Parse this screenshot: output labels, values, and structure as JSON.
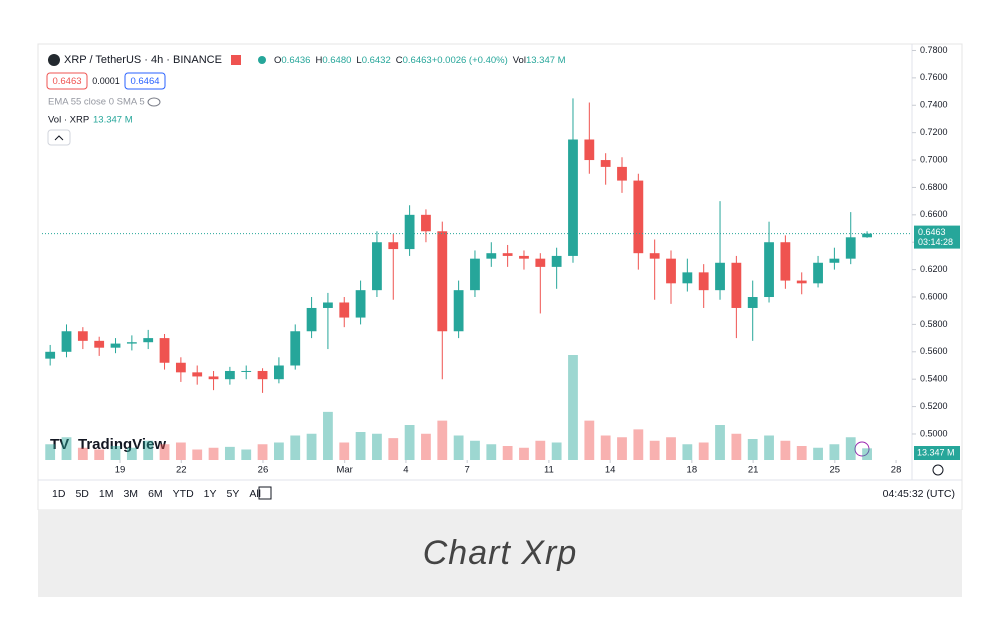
{
  "chart_data": {
    "type": "candlestick",
    "symbol": "XRP / TetherUS · 4h · BINANCE",
    "ohlc_legend": [
      {
        "key": "O",
        "value": "0.6436"
      },
      {
        "key": "H",
        "value": "0.6480"
      },
      {
        "key": "L",
        "value": "0.6432"
      },
      {
        "key": "C",
        "value": "0.6463"
      },
      {
        "key": "",
        "value": "+0.0026 (+0.40%)"
      },
      {
        "key": "Vol",
        "value": "13.347 M"
      }
    ],
    "sell_price": "0.6463",
    "spread": "0.0001",
    "buy_price": "0.6464",
    "indicator_ema": "EMA 55 close 0 SMA 5",
    "indicator_vol": "Vol · XRP",
    "indicator_vol_value": "13.347 M",
    "last_price_label": "0.6463",
    "countdown": "03:14:28",
    "volume_label": "13.347 M",
    "brand": "TradingView",
    "timeframes": [
      "1D",
      "5D",
      "1M",
      "3M",
      "6M",
      "YTD",
      "1Y",
      "5Y",
      "All"
    ],
    "clock": "04:45:32 (UTC)",
    "caption": "Chart Xrp",
    "up_color": "#26a69a",
    "down_color": "#ef5350",
    "last_price": 0.6463,
    "xlim": [
      0,
      53.25
    ],
    "xticks": [
      {
        "value": 4.775,
        "label": "19"
      },
      {
        "value": 8.525,
        "label": "22"
      },
      {
        "value": 13.525,
        "label": "26"
      },
      {
        "value": 18.525,
        "label": "Mar"
      },
      {
        "value": 22.275,
        "label": "4"
      },
      {
        "value": 26.025,
        "label": "7"
      },
      {
        "value": 31.025,
        "label": "11"
      },
      {
        "value": 34.775,
        "label": "14"
      },
      {
        "value": 39.775,
        "label": "18"
      },
      {
        "value": 43.525,
        "label": "21"
      },
      {
        "value": 48.525,
        "label": "25"
      },
      {
        "value": 52.275,
        "label": "28"
      }
    ],
    "ylim": [
      0.481,
      0.784
    ],
    "yticks": [
      {
        "value": 0.78,
        "label": "0.7800"
      },
      {
        "value": 0.76,
        "label": "0.7600"
      },
      {
        "value": 0.74,
        "label": "0.7400"
      },
      {
        "value": 0.72,
        "label": "0.7200"
      },
      {
        "value": 0.7,
        "label": "0.7000"
      },
      {
        "value": 0.68,
        "label": "0.6800"
      },
      {
        "value": 0.66,
        "label": "0.6600"
      },
      {
        "value": 0.64,
        "label": "0.6400"
      },
      {
        "value": 0.62,
        "label": "0.6200"
      },
      {
        "value": 0.6,
        "label": "0.6000"
      },
      {
        "value": 0.58,
        "label": "0.5800"
      },
      {
        "value": 0.56,
        "label": "0.5600"
      },
      {
        "value": 0.54,
        "label": "0.5400"
      },
      {
        "value": 0.52,
        "label": "0.5200"
      },
      {
        "value": 0.5,
        "label": "0.5000"
      }
    ],
    "open": [
      0.555,
      0.56,
      0.575,
      0.568,
      0.563,
      0.566,
      0.567,
      0.57,
      0.552,
      0.545,
      0.542,
      0.54,
      0.546,
      0.546,
      0.54,
      0.55,
      0.575,
      0.592,
      0.596,
      0.585,
      0.605,
      0.64,
      0.635,
      0.66,
      0.648,
      0.575,
      0.605,
      0.628,
      0.632,
      0.63,
      0.628,
      0.622,
      0.63,
      0.715,
      0.7,
      0.695,
      0.685,
      0.632,
      0.628,
      0.61,
      0.618,
      0.605,
      0.625,
      0.592,
      0.6,
      0.64,
      0.612,
      0.61,
      0.625,
      0.628,
      0.6436
    ],
    "high": [
      0.565,
      0.58,
      0.578,
      0.571,
      0.57,
      0.572,
      0.576,
      0.573,
      0.556,
      0.55,
      0.546,
      0.549,
      0.55,
      0.548,
      0.556,
      0.58,
      0.6,
      0.603,
      0.6,
      0.612,
      0.648,
      0.646,
      0.667,
      0.664,
      0.655,
      0.612,
      0.634,
      0.64,
      0.638,
      0.634,
      0.632,
      0.636,
      0.745,
      0.742,
      0.705,
      0.702,
      0.69,
      0.642,
      0.634,
      0.628,
      0.624,
      0.67,
      0.63,
      0.612,
      0.655,
      0.645,
      0.618,
      0.63,
      0.636,
      0.662,
      0.648
    ],
    "low": [
      0.55,
      0.556,
      0.562,
      0.557,
      0.559,
      0.561,
      0.562,
      0.547,
      0.538,
      0.536,
      0.532,
      0.536,
      0.54,
      0.53,
      0.537,
      0.547,
      0.57,
      0.562,
      0.578,
      0.58,
      0.6,
      0.598,
      0.63,
      0.64,
      0.54,
      0.57,
      0.6,
      0.622,
      0.622,
      0.62,
      0.588,
      0.606,
      0.625,
      0.69,
      0.682,
      0.676,
      0.62,
      0.598,
      0.595,
      0.604,
      0.592,
      0.598,
      0.57,
      0.568,
      0.596,
      0.606,
      0.602,
      0.607,
      0.62,
      0.624,
      0.6432
    ],
    "close": [
      0.56,
      0.575,
      0.568,
      0.563,
      0.566,
      0.567,
      0.57,
      0.552,
      0.545,
      0.542,
      0.54,
      0.546,
      0.546,
      0.54,
      0.55,
      0.575,
      0.592,
      0.596,
      0.585,
      0.605,
      0.64,
      0.635,
      0.66,
      0.648,
      0.575,
      0.605,
      0.628,
      0.632,
      0.63,
      0.628,
      0.622,
      0.63,
      0.715,
      0.7,
      0.695,
      0.685,
      0.632,
      0.628,
      0.61,
      0.618,
      0.605,
      0.625,
      0.592,
      0.6,
      0.64,
      0.612,
      0.61,
      0.625,
      0.628,
      0.6436,
      0.6463
    ],
    "volume": [
      18,
      26,
      14,
      12,
      16,
      14,
      22,
      18,
      20,
      12,
      14,
      15,
      12,
      18,
      20,
      28,
      30,
      55,
      20,
      32,
      30,
      25,
      40,
      30,
      45,
      28,
      22,
      18,
      16,
      14,
      22,
      20,
      120,
      45,
      28,
      26,
      35,
      22,
      26,
      18,
      20,
      40,
      30,
      24,
      28,
      22,
      16,
      14,
      18,
      26,
      13.347
    ]
  }
}
